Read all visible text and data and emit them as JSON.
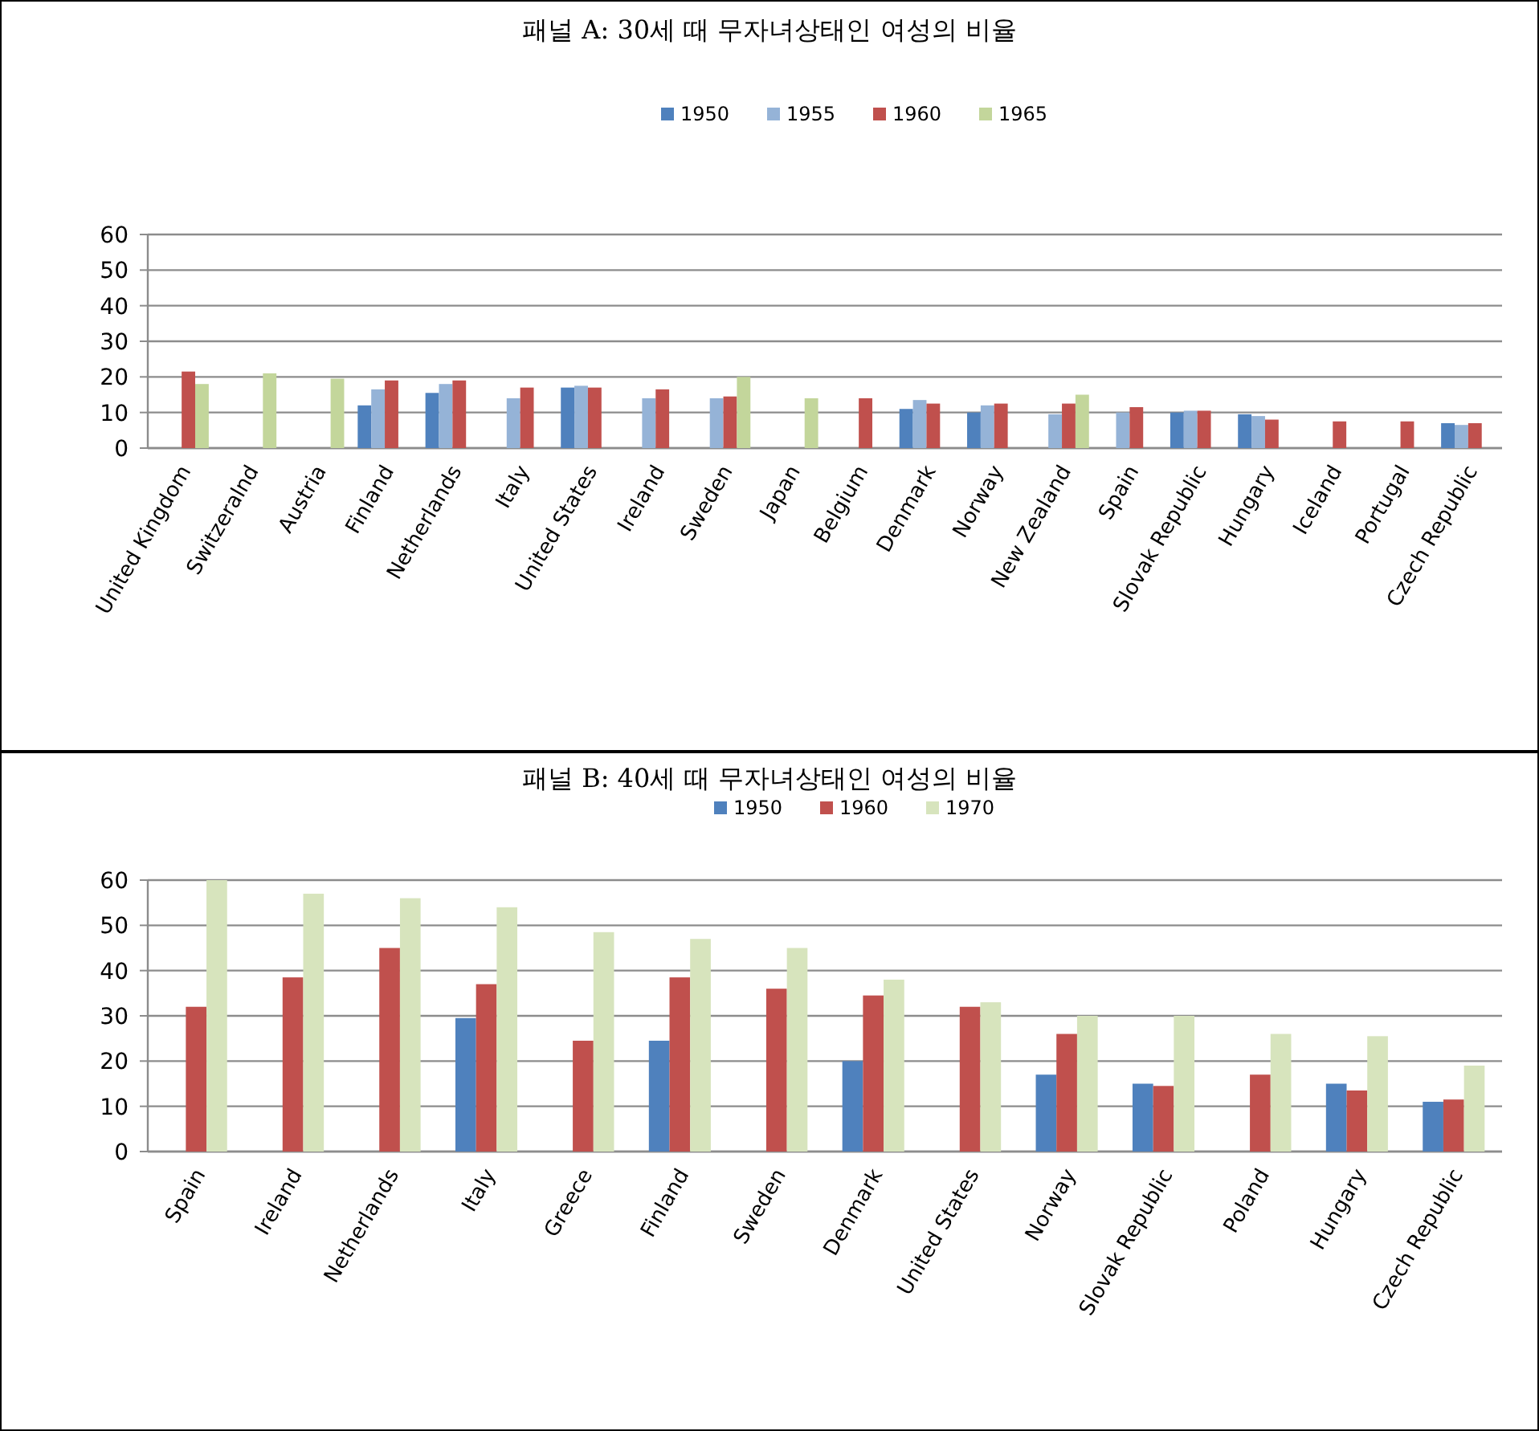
{
  "chart_data": [
    {
      "type": "bar",
      "title": "패널 A: 30세 때 무자녀상태인 여성의 비율",
      "categories": [
        "United Kingdom",
        "Switzeralnd",
        "Austria",
        "Finland",
        "Netherlands",
        "Italy",
        "United States",
        "Ireland",
        "Sweden",
        "Japan",
        "Belgium",
        "Denmark",
        "Norway",
        "New Zealand",
        "Spain",
        "Slovak Republic",
        "Hungary",
        "Iceland",
        "Portugal",
        "Czech Republic"
      ],
      "series": [
        {
          "name": "1950",
          "color": "#4f81bd",
          "values": [
            null,
            null,
            null,
            12,
            15.5,
            null,
            17,
            null,
            null,
            null,
            null,
            11,
            10,
            null,
            null,
            10,
            9.5,
            null,
            null,
            7
          ]
        },
        {
          "name": "1955",
          "color": "#95b3d7",
          "values": [
            null,
            null,
            null,
            16.5,
            18,
            14,
            17.5,
            14,
            14,
            null,
            null,
            13.5,
            12,
            9.5,
            10,
            10.5,
            9,
            null,
            null,
            6.5
          ]
        },
        {
          "name": "1960",
          "color": "#c0504d",
          "values": [
            21.5,
            null,
            null,
            19,
            19,
            17,
            17,
            16.5,
            14.5,
            null,
            14,
            12.5,
            12.5,
            12.5,
            11.5,
            10.5,
            8,
            7.5,
            7.5,
            7
          ]
        },
        {
          "name": "1965",
          "color": "#c3d69b",
          "values": [
            18,
            21,
            19.5,
            null,
            null,
            null,
            null,
            null,
            20,
            14,
            null,
            null,
            null,
            15,
            null,
            null,
            null,
            null,
            null,
            null
          ]
        }
      ],
      "ylim": [
        0,
        60
      ],
      "yticks": [
        0,
        10,
        20,
        30,
        40,
        50,
        60
      ],
      "grid": "y",
      "legend": "top"
    },
    {
      "type": "bar",
      "title": "패널 B: 40세 때 무자녀상태인 여성의 비율",
      "categories": [
        "Spain",
        "Ireland",
        "Netherlands",
        "Italy",
        "Greece",
        "Finland",
        "Sweden",
        "Denmark",
        "United States",
        "Norway",
        "Slovak Republic",
        "Poland",
        "Hungary",
        "Czech Republic"
      ],
      "series": [
        {
          "name": "1950",
          "color": "#4f81bd",
          "values": [
            null,
            null,
            null,
            29.5,
            null,
            24.5,
            null,
            20,
            null,
            17,
            15,
            null,
            15,
            11
          ]
        },
        {
          "name": "1960",
          "color": "#c0504d",
          "values": [
            32,
            38.5,
            45,
            37,
            24.5,
            38.5,
            36,
            34.5,
            32,
            26,
            14.5,
            17,
            13.5,
            11.5
          ]
        },
        {
          "name": "1970",
          "color": "#d7e4bd",
          "values": [
            60,
            57,
            56,
            54,
            48.5,
            47,
            45,
            38,
            33,
            30,
            30,
            26,
            25.5,
            19
          ]
        }
      ],
      "ylim": [
        0,
        60
      ],
      "yticks": [
        0,
        10,
        20,
        30,
        40,
        50,
        60
      ],
      "grid": "y",
      "legend": "top"
    }
  ]
}
